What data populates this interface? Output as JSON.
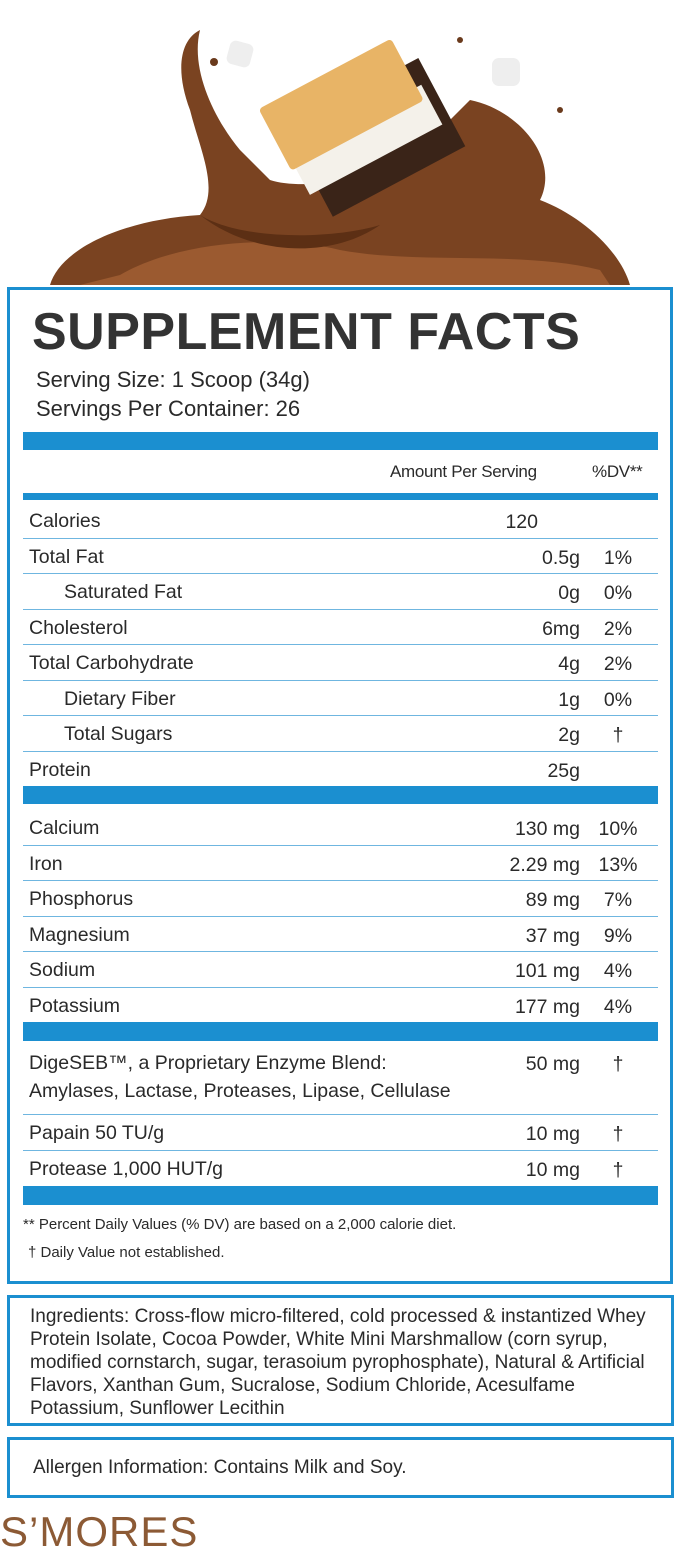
{
  "title": "SUPPLEMENT FACTS",
  "serving_size": "Serving Size: 1 Scoop (34g)",
  "servings_per_container": "Servings Per Container: 26",
  "header": {
    "amount": "Amount Per Serving",
    "dv": "%DV**"
  },
  "macros": [
    {
      "name": "Calories",
      "amount": "120",
      "dv": ""
    },
    {
      "name": "Total Fat",
      "amount": "0.5g",
      "dv": "1%"
    },
    {
      "name": "Saturated Fat",
      "amount": "0g",
      "dv": "0%",
      "indent": true
    },
    {
      "name": "Cholesterol",
      "amount": "6mg",
      "dv": "2%"
    },
    {
      "name": "Total Carbohydrate",
      "amount": "4g",
      "dv": "2%"
    },
    {
      "name": "Dietary Fiber",
      "amount": "1g",
      "dv": "0%",
      "indent": true
    },
    {
      "name": "Total Sugars",
      "amount": "2g",
      "dv": "†",
      "indent": true
    },
    {
      "name": "Protein",
      "amount": "25g",
      "dv": ""
    }
  ],
  "minerals": [
    {
      "name": "Calcium",
      "amount": "130 mg",
      "dv": "10%"
    },
    {
      "name": "Iron",
      "amount": "2.29 mg",
      "dv": "13%"
    },
    {
      "name": "Phosphorus",
      "amount": "89 mg",
      "dv": "7%"
    },
    {
      "name": "Magnesium",
      "amount": "37 mg",
      "dv": "9%"
    },
    {
      "name": "Sodium",
      "amount": "101 mg",
      "dv": "4%"
    },
    {
      "name": "Potassium",
      "amount": "177 mg",
      "dv": "4%"
    }
  ],
  "enzymes": [
    {
      "name": "DigeSEB™, a Proprietary Enzyme Blend:",
      "sub": "Amylases, Lactase, Proteases, Lipase, Cellulase",
      "amount": "50 mg",
      "dv": "†"
    },
    {
      "name": "Papain 50 TU/g",
      "amount": "10 mg",
      "dv": "†"
    },
    {
      "name": "Protease 1,000 HUT/g",
      "amount": "10 mg",
      "dv": "†"
    }
  ],
  "footnotes": [
    "** Percent Daily Values (% DV) are based on a 2,000 calorie diet.",
    "† Daily Value not established."
  ],
  "ingredients": "Ingredients: Cross-flow micro-filtered, cold processed & instantized Whey Protein Isolate, Cocoa Powder, White Mini Marshmallow (corn syrup, modified cornstarch, sugar, terasoium pyrophosphate), Natural & Artificial Flavors, Xanthan Gum, Sucralose, Sodium Chloride, Acesulfame Potassium, Sunflower Lecithin",
  "allergen": "Allergen Information: Contains Milk and Soy.",
  "flavor": "S’MORES",
  "colors": {
    "accent": "#1b8fd0",
    "flavor": "#8c5a35"
  }
}
